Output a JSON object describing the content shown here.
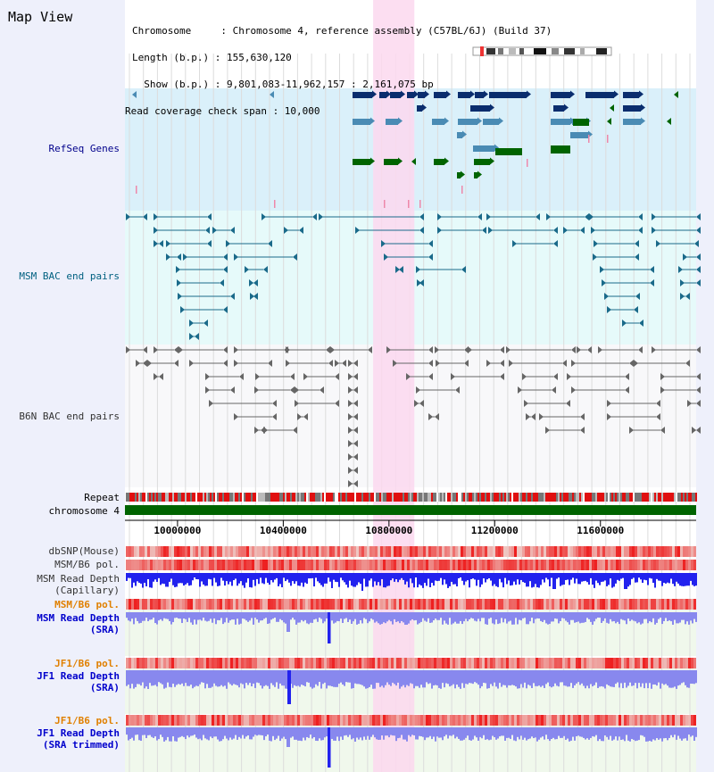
{
  "window": {
    "title": "Map View"
  },
  "info": {
    "chromosome_line": "Chromosome     : Chromosome 4, reference assembly (C57BL/6J) (Build 37)",
    "length_line": "Length (b.p.) : 155,630,120",
    "show_line": "  Show (b.p.) : 9,801,083-11,962,157 : 2,161,075 bp",
    "coverage_line": "Read coverage check span : 10,000"
  },
  "tracks": {
    "refseq": {
      "label": "RefSeq Genes",
      "color": "#00008b"
    },
    "msm_bac": {
      "label": "MSM BAC end pairs",
      "color": "#006080"
    },
    "b6n_bac": {
      "label": "B6N BAC end pairs",
      "color": "#333333"
    },
    "repeat": {
      "label": "Repeat"
    },
    "chromosome": {
      "label": "chromosome 4"
    },
    "dbsnp": {
      "label": "dbSNP(Mouse)"
    },
    "msm_pol": {
      "label": "MSM/B6 pol."
    },
    "msm_depth_cap": {
      "label": "MSM Read Depth",
      "sub": "(Capillary)"
    },
    "msm_pol2": {
      "label": "MSM/B6 pol.",
      "color": "#e08000"
    },
    "msm_depth_sra": {
      "label": "MSM Read Depth",
      "sub": "(SRA)",
      "color": "#0000cc"
    },
    "jf1_pol": {
      "label": "JF1/B6 pol.",
      "color": "#e08000"
    },
    "jf1_depth_sra": {
      "label": "JF1 Read Depth",
      "sub": "(SRA)",
      "color": "#0000cc"
    },
    "jf1_pol2": {
      "label": "JF1/B6 pol.",
      "color": "#e08000"
    },
    "jf1_depth_trim": {
      "label": "JF1 Read Depth",
      "sub": "(SRA trimmed)",
      "color": "#0000cc"
    }
  },
  "axis": {
    "ticks": [
      {
        "pos": 10000000,
        "label": "10000000"
      },
      {
        "pos": 10400000,
        "label": "10400000"
      },
      {
        "pos": 10800000,
        "label": "10800000"
      },
      {
        "pos": 11200000,
        "label": "11200000"
      },
      {
        "pos": 11600000,
        "label": "11600000"
      }
    ]
  },
  "view": {
    "start": 9801083,
    "end": 11962157,
    "highlight_start": 10740000,
    "highlight_end": 10896000
  },
  "colors": {
    "refseq_dark": "#0a2d6e",
    "refseq_mid": "#4a8bb4",
    "refseq_green": "#006400",
    "pink_feature": "#ee88aa",
    "highlight": "#fcd8ee",
    "msm_line": "#1a6a8a",
    "b6n_line": "#666666",
    "repeat_red": "#e01010",
    "repeat_gray": "#777777",
    "chrom_green": "#006400",
    "snp_red": "#ee3333",
    "depth_blue": "#2222ee",
    "depth_light": "#8888ee"
  }
}
